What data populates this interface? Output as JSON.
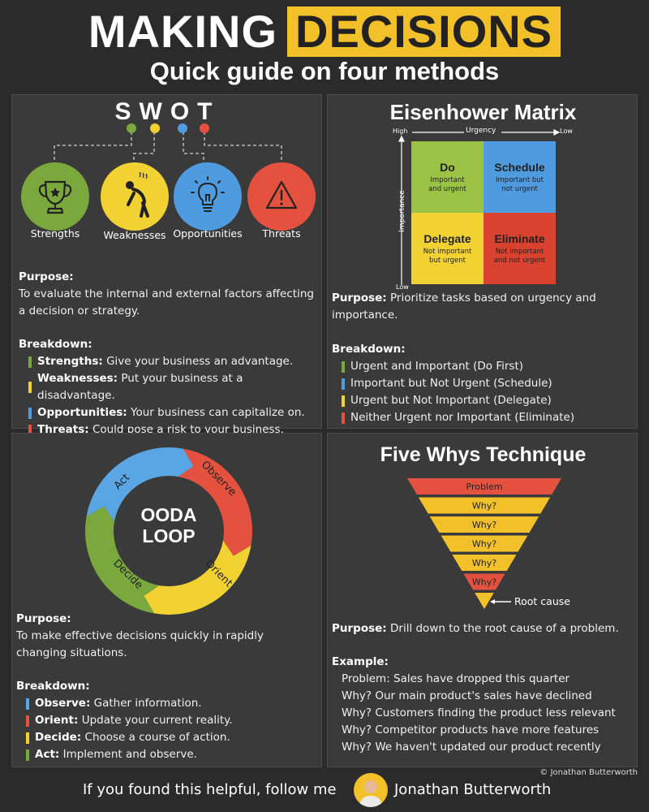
{
  "header": {
    "title_word1": "MAKING",
    "title_word2": "DECISIONS",
    "subtitle": "Quick guide on four methods"
  },
  "swot": {
    "title": "SWOT",
    "items": [
      {
        "label": "Strengths",
        "color": "#7aa83c"
      },
      {
        "label": "Weaknesses",
        "color": "#f2d233"
      },
      {
        "label": "Opportunities",
        "color": "#4e9be0"
      },
      {
        "label": "Threats",
        "color": "#e4523f"
      }
    ],
    "purpose_label": "Purpose:",
    "purpose_text_1": "To evaluate the internal and external factors affecting",
    "purpose_text_2": "a decision or strategy.",
    "breakdown_label": "Breakdown:",
    "breakdown": [
      {
        "term": "Strengths:",
        "desc": "Give your business an advantage.",
        "color": "#7aa83c"
      },
      {
        "term": "Weaknesses:",
        "desc": "Put your business at a disadvantage.",
        "color": "#f2d233"
      },
      {
        "term": "Opportunities:",
        "desc": "Your business can capitalize on.",
        "color": "#4e9be0"
      },
      {
        "term": "Threats:",
        "desc": "Could pose a risk to your business.",
        "color": "#e4523f"
      }
    ]
  },
  "eisenhower": {
    "title": "Eisenhower Matrix",
    "axis_high": "High",
    "axis_urgency": "Urgency",
    "axis_low": "Low",
    "axis_importance": "Importance",
    "axis_low_bottom": "Low",
    "quadrants": [
      {
        "title": "Do",
        "sub1": "Important",
        "sub2": "and urgent",
        "color": "#9bc244",
        "text": "#222"
      },
      {
        "title": "Schedule",
        "sub1": "Important but",
        "sub2": "not urgent",
        "color": "#4e9be0",
        "text": "#222"
      },
      {
        "title": "Delegate",
        "sub1": "Not important",
        "sub2": "but urgent",
        "color": "#f2d233",
        "text": "#222"
      },
      {
        "title": "Eliminate",
        "sub1": "Not important",
        "sub2": "and not urgent",
        "color": "#d8422f",
        "text": "#222"
      }
    ],
    "purpose_label": "Purpose:",
    "purpose_text_1": "Prioritize tasks based on urgency and",
    "purpose_text_2": "importance.",
    "breakdown_label": "Breakdown:",
    "breakdown": [
      {
        "text": "Urgent and Important (Do First)",
        "color": "#7aa83c"
      },
      {
        "text": "Important but Not Urgent (Schedule)",
        "color": "#4e9be0"
      },
      {
        "text": "Urgent but Not Important (Delegate)",
        "color": "#f2d233"
      },
      {
        "text": "Neither Urgent nor Important (Eliminate)",
        "color": "#e4523f"
      }
    ]
  },
  "ooda": {
    "center_1": "OODA",
    "center_2": "LOOP",
    "segments": [
      {
        "label": "Observe",
        "color": "#5aa5e4"
      },
      {
        "label": "Orient",
        "color": "#e4523f"
      },
      {
        "label": "Decide",
        "color": "#f2d233"
      },
      {
        "label": "Act",
        "color": "#7aa83c"
      }
    ],
    "purpose_label": "Purpose:",
    "purpose_text_1": "To make effective decisions quickly in rapidly",
    "purpose_text_2": "changing situations.",
    "breakdown_label": "Breakdown:",
    "breakdown": [
      {
        "term": "Observe:",
        "desc": "Gather information.",
        "color": "#5aa5e4"
      },
      {
        "term": "Orient:",
        "desc": "Update your current reality.",
        "color": "#e4523f"
      },
      {
        "term": "Decide:",
        "desc": "Choose a course of action.",
        "color": "#f2d233"
      },
      {
        "term": "Act:",
        "desc": "Implement and observe.",
        "color": "#7aa83c"
      }
    ]
  },
  "fivewhys": {
    "title": "Five Whys Technique",
    "levels": [
      {
        "label": "Problem",
        "color": "#e4523f"
      },
      {
        "label": "Why?",
        "color": "#f2c029"
      },
      {
        "label": "Why?",
        "color": "#f2c029"
      },
      {
        "label": "Why?",
        "color": "#f2c029"
      },
      {
        "label": "Why?",
        "color": "#f2c029"
      },
      {
        "label": "Why?",
        "color": "#e4523f"
      }
    ],
    "tip_color": "#f2c029",
    "root_label": "Root cause",
    "purpose_label": "Purpose:",
    "purpose_text": "Drill down to the root cause of a problem.",
    "example_label": "Example:",
    "examples": [
      "Problem: Sales have dropped this quarter",
      "Why? Our main product's sales have declined",
      "Why? Customers finding the product less relevant",
      "Why? Competitor products have more features",
      "Why? We haven't updated our product recently"
    ]
  },
  "footer": {
    "copyright": "© Jonathan Butterworth",
    "follow": "If you found this helpful, follow me",
    "author": "Jonathan Butterworth"
  }
}
